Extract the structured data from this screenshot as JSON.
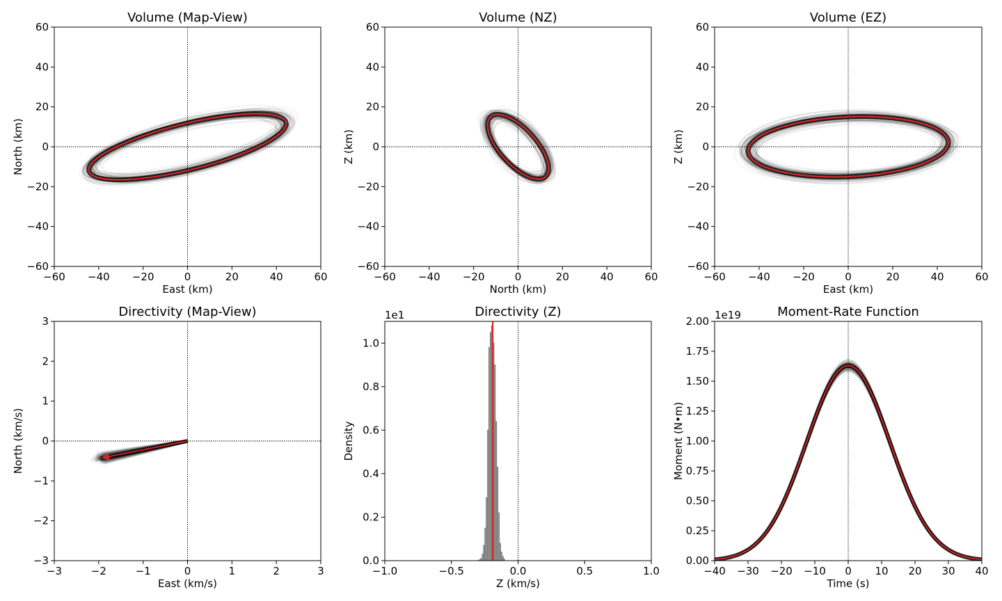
{
  "chart_data": [
    {
      "id": "vol_map",
      "type": "line",
      "title": "Volume (Map-View)",
      "xlabel": "East (km)",
      "ylabel": "North (km)",
      "xlim": [
        -60,
        60
      ],
      "ylim": [
        -60,
        60
      ],
      "xticks": [
        -60,
        -40,
        -20,
        0,
        20,
        40,
        60
      ],
      "yticks": [
        -60,
        -40,
        -20,
        0,
        20,
        40,
        60
      ],
      "xtick_labels": [
        "−60",
        "−40",
        "−20",
        "0",
        "20",
        "40",
        "60"
      ],
      "ytick_labels": [
        "−60",
        "−40",
        "−20",
        "0",
        "20",
        "40",
        "60"
      ],
      "zero_lines": true,
      "ellipse": {
        "center": [
          0,
          0
        ],
        "semi_major": 46,
        "semi_minor": 11.5,
        "angle_deg": 15.5
      },
      "ensemble_color": "#000000",
      "best_fit_color": "#d62728"
    },
    {
      "id": "vol_nz",
      "type": "line",
      "title": "Volume (NZ)",
      "xlabel": "North (km)",
      "ylabel": "Z (km)",
      "xlim": [
        -60,
        60
      ],
      "ylim": [
        -60,
        60
      ],
      "xticks": [
        -60,
        -40,
        -20,
        0,
        20,
        40,
        60
      ],
      "yticks": [
        -60,
        -40,
        -20,
        0,
        20,
        40,
        60
      ],
      "xtick_labels": [
        "−60",
        "−40",
        "−20",
        "0",
        "20",
        "40",
        "60"
      ],
      "ytick_labels": [
        "−60",
        "−40",
        "−20",
        "0",
        "20",
        "40",
        "60"
      ],
      "zero_lines": true,
      "ellipse": {
        "center": [
          0,
          0
        ],
        "semi_major": 19.5,
        "semi_minor": 8.5,
        "angle_deg": -52
      },
      "ensemble_color": "#000000",
      "best_fit_color": "#d62728"
    },
    {
      "id": "vol_ez",
      "type": "line",
      "title": "Volume (EZ)",
      "xlabel": "East (km)",
      "ylabel": "Z (km)",
      "xlim": [
        -60,
        60
      ],
      "ylim": [
        -60,
        60
      ],
      "xticks": [
        -60,
        -40,
        -20,
        0,
        20,
        40,
        60
      ],
      "yticks": [
        -60,
        -40,
        -20,
        0,
        20,
        40,
        60
      ],
      "xtick_labels": [
        "−60",
        "−40",
        "−20",
        "0",
        "20",
        "40",
        "60"
      ],
      "ytick_labels": [
        "−60",
        "−40",
        "−20",
        "0",
        "20",
        "40",
        "60"
      ],
      "zero_lines": true,
      "ellipse": {
        "center": [
          0,
          0
        ],
        "semi_major": 45,
        "semi_minor": 15,
        "angle_deg": 3
      },
      "ensemble_color": "#000000",
      "best_fit_color": "#d62728"
    },
    {
      "id": "dir_map",
      "type": "line",
      "title": "Directivity (Map-View)",
      "xlabel": "East (km/s)",
      "ylabel": "North (km/s)",
      "xlim": [
        -3,
        3
      ],
      "ylim": [
        -3,
        3
      ],
      "xticks": [
        -3,
        -2,
        -1,
        0,
        1,
        2,
        3
      ],
      "yticks": [
        -3,
        -2,
        -1,
        0,
        1,
        2,
        3
      ],
      "xtick_labels": [
        "−3",
        "−2",
        "−1",
        "0",
        "1",
        "2",
        "3"
      ],
      "ytick_labels": [
        "−3",
        "−2",
        "−1",
        "0",
        "1",
        "2",
        "3"
      ],
      "zero_lines": true,
      "arrow": {
        "from": [
          0,
          0
        ],
        "to": [
          -1.95,
          -0.43
        ]
      },
      "ensemble_color": "#000000",
      "best_fit_color": "#d62728"
    },
    {
      "id": "dir_z",
      "type": "bar",
      "title": "Directivity (Z)",
      "xlabel": "Z (km/s)",
      "ylabel": "Density",
      "offset_text": "1e1",
      "xlim": [
        -1.0,
        1.0
      ],
      "ylim": [
        0,
        1.1
      ],
      "xticks": [
        -1.0,
        -0.5,
        0.0,
        0.5,
        1.0
      ],
      "yticks": [
        0.0,
        0.2,
        0.4,
        0.6,
        0.8,
        1.0
      ],
      "xtick_labels": [
        "−1.0",
        "−0.5",
        "0.0",
        "0.5",
        "1.0"
      ],
      "ytick_labels": [
        "0.0",
        "0.2",
        "0.4",
        "0.6",
        "0.8",
        "1.0"
      ],
      "zero_lines": true,
      "histogram": {
        "bin_centers": [
          -0.295,
          -0.285,
          -0.275,
          -0.265,
          -0.255,
          -0.245,
          -0.235,
          -0.225,
          -0.215,
          -0.205,
          -0.195,
          -0.185,
          -0.175,
          -0.165,
          -0.155,
          -0.145,
          -0.135,
          -0.125,
          -0.115,
          -0.105
        ],
        "bin_width": 0.01,
        "density": [
          0.002,
          0.005,
          0.01,
          0.03,
          0.07,
          0.15,
          0.29,
          0.6,
          0.98,
          1.05,
          1.08,
          1.0,
          0.9,
          0.64,
          0.43,
          0.22,
          0.08,
          0.04,
          0.02,
          0.008
        ],
        "color": "#a0a0a0"
      },
      "best_fit_x": -0.19,
      "best_fit_color": "#d62728"
    },
    {
      "id": "mrf",
      "type": "line",
      "title": "Moment-Rate Function",
      "xlabel": "Time (s)",
      "ylabel": "Moment (N•m)",
      "offset_text": "1e19",
      "xlim": [
        -40,
        40
      ],
      "ylim": [
        0,
        2.0
      ],
      "xticks": [
        -40,
        -30,
        -20,
        -10,
        0,
        10,
        20,
        30,
        40
      ],
      "yticks": [
        0.0,
        0.25,
        0.5,
        0.75,
        1.0,
        1.25,
        1.5,
        1.75,
        2.0
      ],
      "xtick_labels": [
        "−40",
        "−30",
        "−20",
        "−10",
        "0",
        "10",
        "20",
        "30",
        "40"
      ],
      "ytick_labels": [
        "0.00",
        "0.25",
        "0.50",
        "0.75",
        "1.00",
        "1.25",
        "1.50",
        "1.75",
        "2.00"
      ],
      "zero_lines": "x",
      "gaussian": {
        "peak": 1.63,
        "center": 0,
        "sigma": 12.5
      },
      "ensemble_color": "#000000",
      "best_fit_color": "#d62728"
    }
  ]
}
